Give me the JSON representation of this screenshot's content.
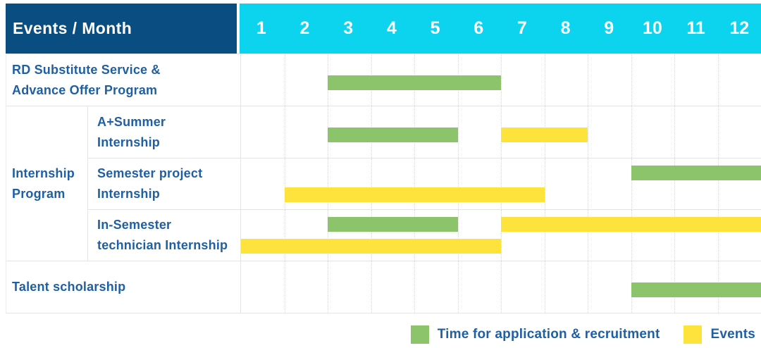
{
  "title": "Events / Month schedule",
  "colors": {
    "header_navy": "#0A4D80",
    "header_cyan": "#0CD4EF",
    "bar_green": "#8BC46B",
    "bar_yellow": "#FFE33D",
    "label_blue": "#1F5FA3",
    "grid_line_solid": "#E4E4E4",
    "grid_line_dotted": "#D8D8D8"
  },
  "header": {
    "label": "Events / Month",
    "months": [
      "1",
      "2",
      "3",
      "4",
      "5",
      "6",
      "7",
      "8",
      "9",
      "10",
      "11",
      "12"
    ]
  },
  "chart_data": {
    "type": "bar",
    "subtype": "gantt",
    "title": "Events / Month",
    "xlabel": "Month",
    "x_ticks": [
      1,
      2,
      3,
      4,
      5,
      6,
      7,
      8,
      9,
      10,
      11,
      12
    ],
    "x_range": [
      1,
      12
    ],
    "grid": "dotted-vertical",
    "legend_position": "bottom-right",
    "legend": [
      {
        "color": "green",
        "label": "Time for application & recruitment"
      },
      {
        "color": "yellow",
        "label": "Events"
      }
    ],
    "sections": [
      {
        "label": "RD Substitute Service & Advance Offer Program",
        "label_lines": [
          "RD Substitute Service &",
          "Advance Offer Program"
        ],
        "rows": [
          {
            "lanes": [
              [
                {
                  "color": "green",
                  "start": 3,
                  "end": 6
                }
              ]
            ]
          }
        ]
      },
      {
        "label": "Internship Program",
        "label_lines": [
          "Internship",
          "Program"
        ],
        "rows": [
          {
            "label": "A+Summer Internship",
            "label_lines": [
              "A+Summer",
              "Internship"
            ],
            "lanes": [
              [
                {
                  "color": "green",
                  "start": 3,
                  "end": 5
                },
                {
                  "color": "yellow",
                  "start": 7,
                  "end": 8
                }
              ]
            ]
          },
          {
            "label": "Semester project Internship",
            "label_lines": [
              "Semester project",
              "Internship"
            ],
            "lanes": [
              [
                {
                  "color": "green",
                  "start": 10,
                  "end": 12
                }
              ],
              [
                {
                  "color": "yellow",
                  "start": 2,
                  "end": 7
                }
              ]
            ]
          },
          {
            "label": "In-Semester technician Internship",
            "label_lines": [
              "In-Semester",
              "technician Internship"
            ],
            "lanes": [
              [
                {
                  "color": "green",
                  "start": 3,
                  "end": 5
                },
                {
                  "color": "yellow",
                  "start": 7,
                  "end": 12
                }
              ],
              [
                {
                  "color": "yellow",
                  "start": 1,
                  "end": 6
                }
              ]
            ]
          }
        ]
      },
      {
        "label": "Talent scholarship",
        "label_lines": [
          "Talent scholarship"
        ],
        "rows": [
          {
            "lanes": [
              [
                {
                  "color": "green",
                  "start": 10,
                  "end": 12
                }
              ]
            ]
          }
        ]
      }
    ]
  }
}
